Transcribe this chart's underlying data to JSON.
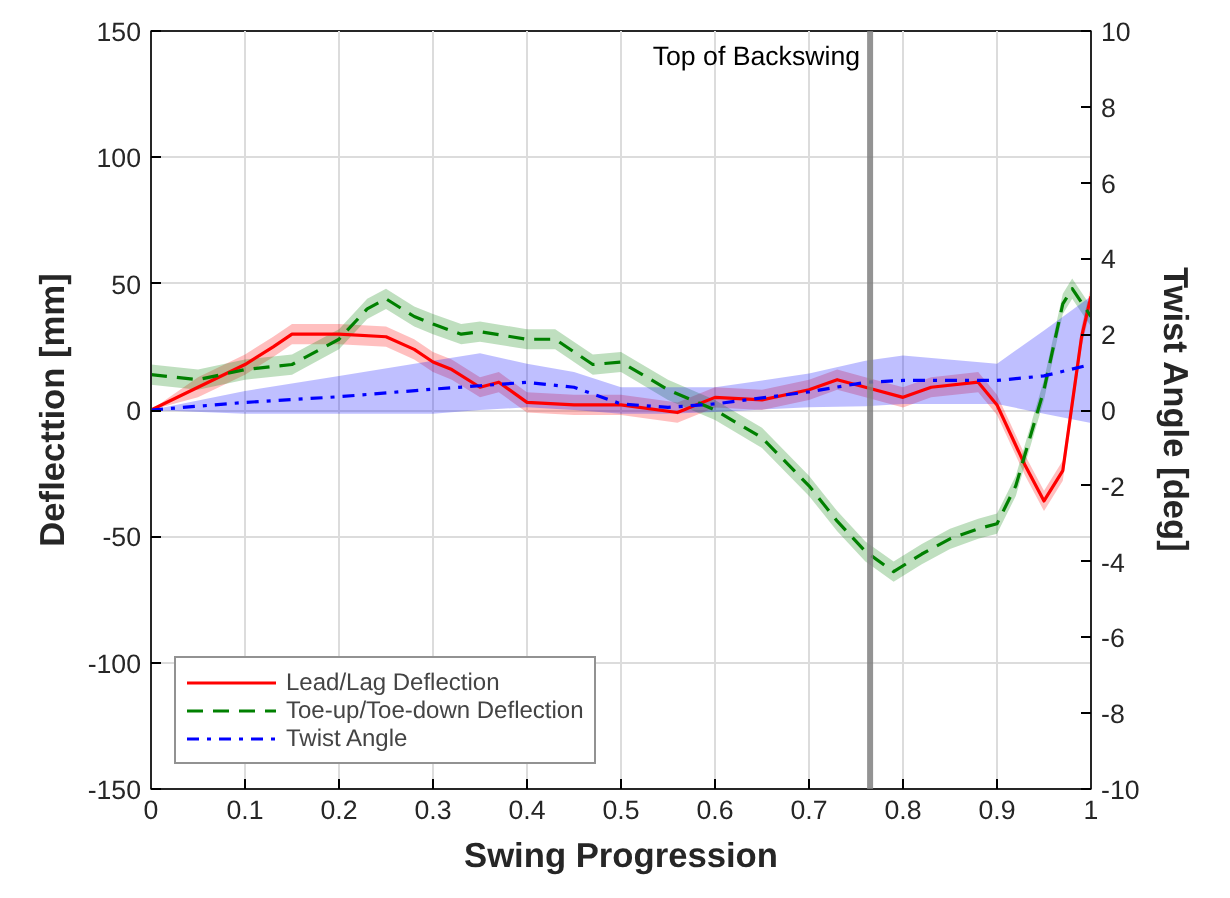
{
  "chart_data": {
    "type": "line",
    "xlabel": "Swing Progression",
    "ylabel": "Deflecttion [mm]",
    "y2label": "Twist Angle [deg]",
    "xlim": [
      0,
      1
    ],
    "xticks": [
      0,
      0.1,
      0.2,
      0.3,
      0.4,
      0.5,
      0.6,
      0.7,
      0.8,
      0.9,
      1
    ],
    "ylim": [
      -150,
      150
    ],
    "yticks": [
      -150,
      -100,
      -50,
      0,
      50,
      100,
      150
    ],
    "y2lim": [
      -10,
      10
    ],
    "y2ticks": [
      -10,
      -8,
      -6,
      -4,
      -2,
      0,
      2,
      4,
      6,
      8,
      10
    ],
    "grid": true,
    "legend": "bottom left",
    "marker": "none",
    "ref_lines": [
      {
        "axis": "x",
        "value": 0.765,
        "label": "Top of Backswing",
        "color": "#808080"
      }
    ],
    "series": [
      {
        "name": "Lead/Lag Deflection",
        "color": "#ff0000",
        "line_style": "solid",
        "x": [
          0,
          0.05,
          0.1,
          0.13,
          0.15,
          0.2,
          0.25,
          0.28,
          0.3,
          0.32,
          0.35,
          0.37,
          0.4,
          0.45,
          0.5,
          0.56,
          0.6,
          0.65,
          0.7,
          0.73,
          0.76,
          0.8,
          0.83,
          0.88,
          0.9,
          0.93,
          0.95,
          0.97,
          0.99,
          1
        ],
        "values": [
          0,
          9,
          18,
          25,
          30,
          30,
          29,
          24,
          19,
          16,
          9,
          11,
          3,
          2,
          2,
          -1,
          5,
          4,
          8,
          12,
          9,
          5,
          9,
          11,
          2,
          -22,
          -36,
          -24,
          29,
          45
        ],
        "lower": [
          0,
          5,
          14,
          21,
          26,
          26,
          25,
          20,
          15,
          12,
          5,
          7,
          -1,
          -2,
          -2,
          -5,
          1,
          0,
          4,
          8,
          5,
          1,
          5,
          7,
          -2,
          -26,
          -40,
          -28,
          25,
          41
        ],
        "upper": [
          0,
          13,
          22,
          29,
          34,
          34,
          33,
          28,
          23,
          20,
          13,
          15,
          7,
          6,
          6,
          3,
          9,
          8,
          12,
          16,
          13,
          9,
          13,
          15,
          6,
          -18,
          -32,
          -20,
          33,
          49
        ]
      },
      {
        "name": "Toe-up/Toe-down Deflection",
        "color": "#008000",
        "line_style": "dashed",
        "x": [
          0,
          0.05,
          0.1,
          0.15,
          0.2,
          0.23,
          0.25,
          0.28,
          0.3,
          0.33,
          0.35,
          0.4,
          0.43,
          0.47,
          0.5,
          0.55,
          0.6,
          0.65,
          0.7,
          0.73,
          0.76,
          0.79,
          0.82,
          0.85,
          0.88,
          0.9,
          0.92,
          0.95,
          0.97,
          0.98,
          1
        ],
        "values": [
          14,
          12,
          16,
          18,
          28,
          40,
          44,
          37,
          34,
          30,
          31,
          28,
          28,
          18,
          19,
          8,
          0,
          -11,
          -30,
          -44,
          -56,
          -64,
          -57,
          -51,
          -47,
          -45,
          -30,
          8,
          42,
          48,
          37
        ],
        "lower": [
          10,
          8,
          12,
          14,
          24,
          36,
          40,
          33,
          30,
          26,
          27,
          24,
          24,
          14,
          15,
          4,
          -4,
          -15,
          -34,
          -48,
          -60,
          -68,
          -61,
          -55,
          -51,
          -49,
          -34,
          4,
          38,
          44,
          33
        ],
        "upper": [
          18,
          16,
          20,
          22,
          32,
          44,
          48,
          41,
          38,
          34,
          35,
          32,
          32,
          22,
          23,
          12,
          4,
          -7,
          -26,
          -40,
          -52,
          -60,
          -53,
          -47,
          -43,
          -41,
          -26,
          12,
          46,
          52,
          41
        ]
      },
      {
        "name": "Twist Angle",
        "color": "#0000ff",
        "line_style": "dashdot",
        "axis": "y2",
        "x": [
          0,
          0.1,
          0.2,
          0.3,
          0.35,
          0.4,
          0.45,
          0.5,
          0.55,
          0.6,
          0.7,
          0.76,
          0.8,
          0.9,
          0.95,
          1
        ],
        "values": [
          0,
          0.2,
          0.35,
          0.55,
          0.64,
          0.73,
          0.6,
          0.16,
          0.07,
          0.16,
          0.48,
          0.73,
          0.78,
          0.78,
          0.9,
          1.2
        ],
        "lower": [
          0,
          -0.1,
          -0.1,
          -0.1,
          0,
          0.07,
          0,
          -0.1,
          -0.1,
          -0.05,
          0.07,
          0.1,
          0.16,
          0.16,
          -0.1,
          -0.34
        ],
        "upper": [
          0,
          0.5,
          0.9,
          1.3,
          1.5,
          1.22,
          1,
          0.6,
          0.6,
          0.6,
          0.96,
          1.3,
          1.44,
          1.22,
          2.1,
          3
        ]
      }
    ]
  }
}
